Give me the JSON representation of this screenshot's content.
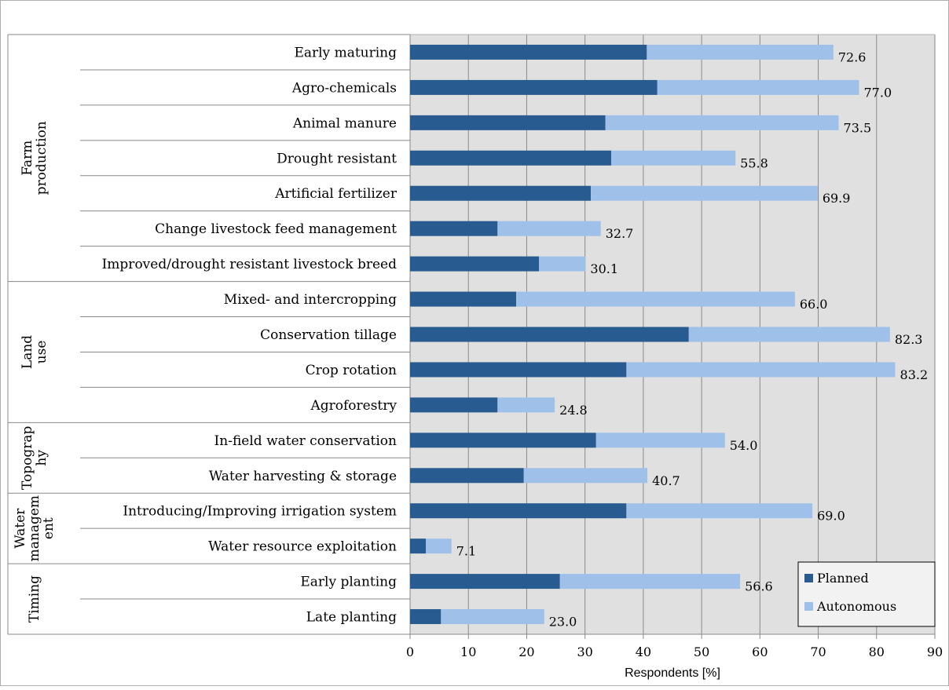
{
  "chart_data": {
    "type": "bar",
    "orientation": "horizontal",
    "stacked": true,
    "groups": [
      {
        "label": "Farm production",
        "categories": [
          "Early maturing",
          "Agro-chemicals",
          "Animal manure",
          "Drought resistant",
          "Artificial fertilizer",
          "Change livestock feed management",
          "Improved/drought resistant livestock breed"
        ]
      },
      {
        "label": "Land use",
        "categories": [
          "Mixed- and intercropping",
          "Conservation tillage",
          "Crop rotation",
          "Agroforestry"
        ]
      },
      {
        "label": "Topograp hy",
        "categories": [
          "In-field water conservation",
          "Water harvesting & storage"
        ]
      },
      {
        "label": "Water managem ent",
        "categories": [
          "Introducing/Improving irrigation system",
          "Water resource exploitation"
        ]
      },
      {
        "label": "Timing",
        "categories": [
          "Early planting",
          "Late planting"
        ]
      }
    ],
    "categories": [
      "Early maturing",
      "Agro-chemicals",
      "Animal manure",
      "Drought resistant",
      "Artificial fertilizer",
      "Change livestock feed management",
      "Improved/drought resistant livestock breed",
      "Mixed- and intercropping",
      "Conservation tillage",
      "Crop rotation",
      "Agroforestry",
      "In-field water conservation",
      "Water harvesting & storage",
      "Introducing/Improving irrigation system",
      "Water resource exploitation",
      "Early planting",
      "Late planting"
    ],
    "series": [
      {
        "name": "Planned",
        "color": "#285b8f",
        "values": [
          40.6,
          42.4,
          33.5,
          34.5,
          31.0,
          15.0,
          22.1,
          18.2,
          47.8,
          37.1,
          15.0,
          31.9,
          19.5,
          37.1,
          2.7,
          25.7,
          5.3
        ]
      },
      {
        "name": "Autonomous",
        "color": "#9fc1e9",
        "values": [
          32.0,
          34.6,
          40.0,
          21.3,
          38.9,
          17.7,
          8.0,
          47.8,
          34.5,
          46.1,
          9.8,
          22.1,
          21.2,
          31.9,
          4.4,
          30.9,
          17.7
        ]
      }
    ],
    "totals": [
      "72.6",
      "77.0",
      "73.5",
      "55.8",
      "69.9",
      "32.7",
      "30.1",
      "66.0",
      "82.3",
      "83.2",
      "24.8",
      "54.0",
      "40.7",
      "69.0",
      "7.1",
      "56.6",
      "23.0"
    ],
    "xlim": [
      0,
      90
    ],
    "xticks": [
      0,
      10,
      20,
      30,
      40,
      50,
      60,
      70,
      80,
      90
    ],
    "xlabel": "Respondents [%]",
    "grid": true,
    "plot_background": "#e0e0e0",
    "legend_position": "bottom-right"
  }
}
